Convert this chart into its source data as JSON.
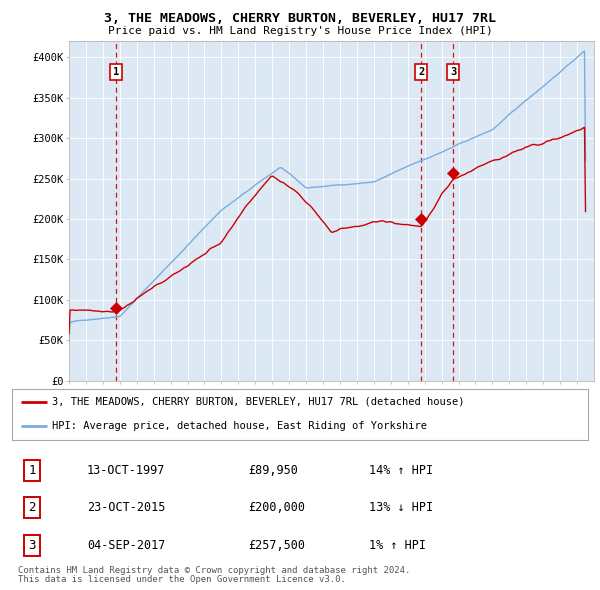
{
  "title": "3, THE MEADOWS, CHERRY BURTON, BEVERLEY, HU17 7RL",
  "subtitle": "Price paid vs. HM Land Registry's House Price Index (HPI)",
  "transactions": [
    {
      "date": 1997.79,
      "price": 89950,
      "label": "1"
    },
    {
      "date": 2015.81,
      "price": 200000,
      "label": "2"
    },
    {
      "date": 2017.68,
      "price": 257500,
      "label": "3"
    }
  ],
  "transaction_table": [
    {
      "num": "1",
      "date": "13-OCT-1997",
      "price": "£89,950",
      "pct": "14% ↑ HPI"
    },
    {
      "num": "2",
      "date": "23-OCT-2015",
      "price": "£200,000",
      "pct": "13% ↓ HPI"
    },
    {
      "num": "3",
      "date": "04-SEP-2017",
      "price": "£257,500",
      "pct": "1% ↑ HPI"
    }
  ],
  "legend_line1": "3, THE MEADOWS, CHERRY BURTON, BEVERLEY, HU17 7RL (detached house)",
  "legend_line2": "HPI: Average price, detached house, East Riding of Yorkshire",
  "footer1": "Contains HM Land Registry data © Crown copyright and database right 2024.",
  "footer2": "This data is licensed under the Open Government Licence v3.0.",
  "price_color": "#cc0000",
  "hpi_color": "#7aacdc",
  "vline_color": "#cc0000",
  "ylim": [
    0,
    420000
  ],
  "yticks": [
    0,
    50000,
    100000,
    150000,
    200000,
    250000,
    300000,
    350000,
    400000
  ],
  "ytick_labels": [
    "£0",
    "£50K",
    "£100K",
    "£150K",
    "£200K",
    "£250K",
    "£300K",
    "£350K",
    "£400K"
  ],
  "xmin": 1995.0,
  "xmax": 2026.0,
  "chart_bg": "#dce9f5",
  "background_color": "#ffffff",
  "grid_color": "#ffffff"
}
